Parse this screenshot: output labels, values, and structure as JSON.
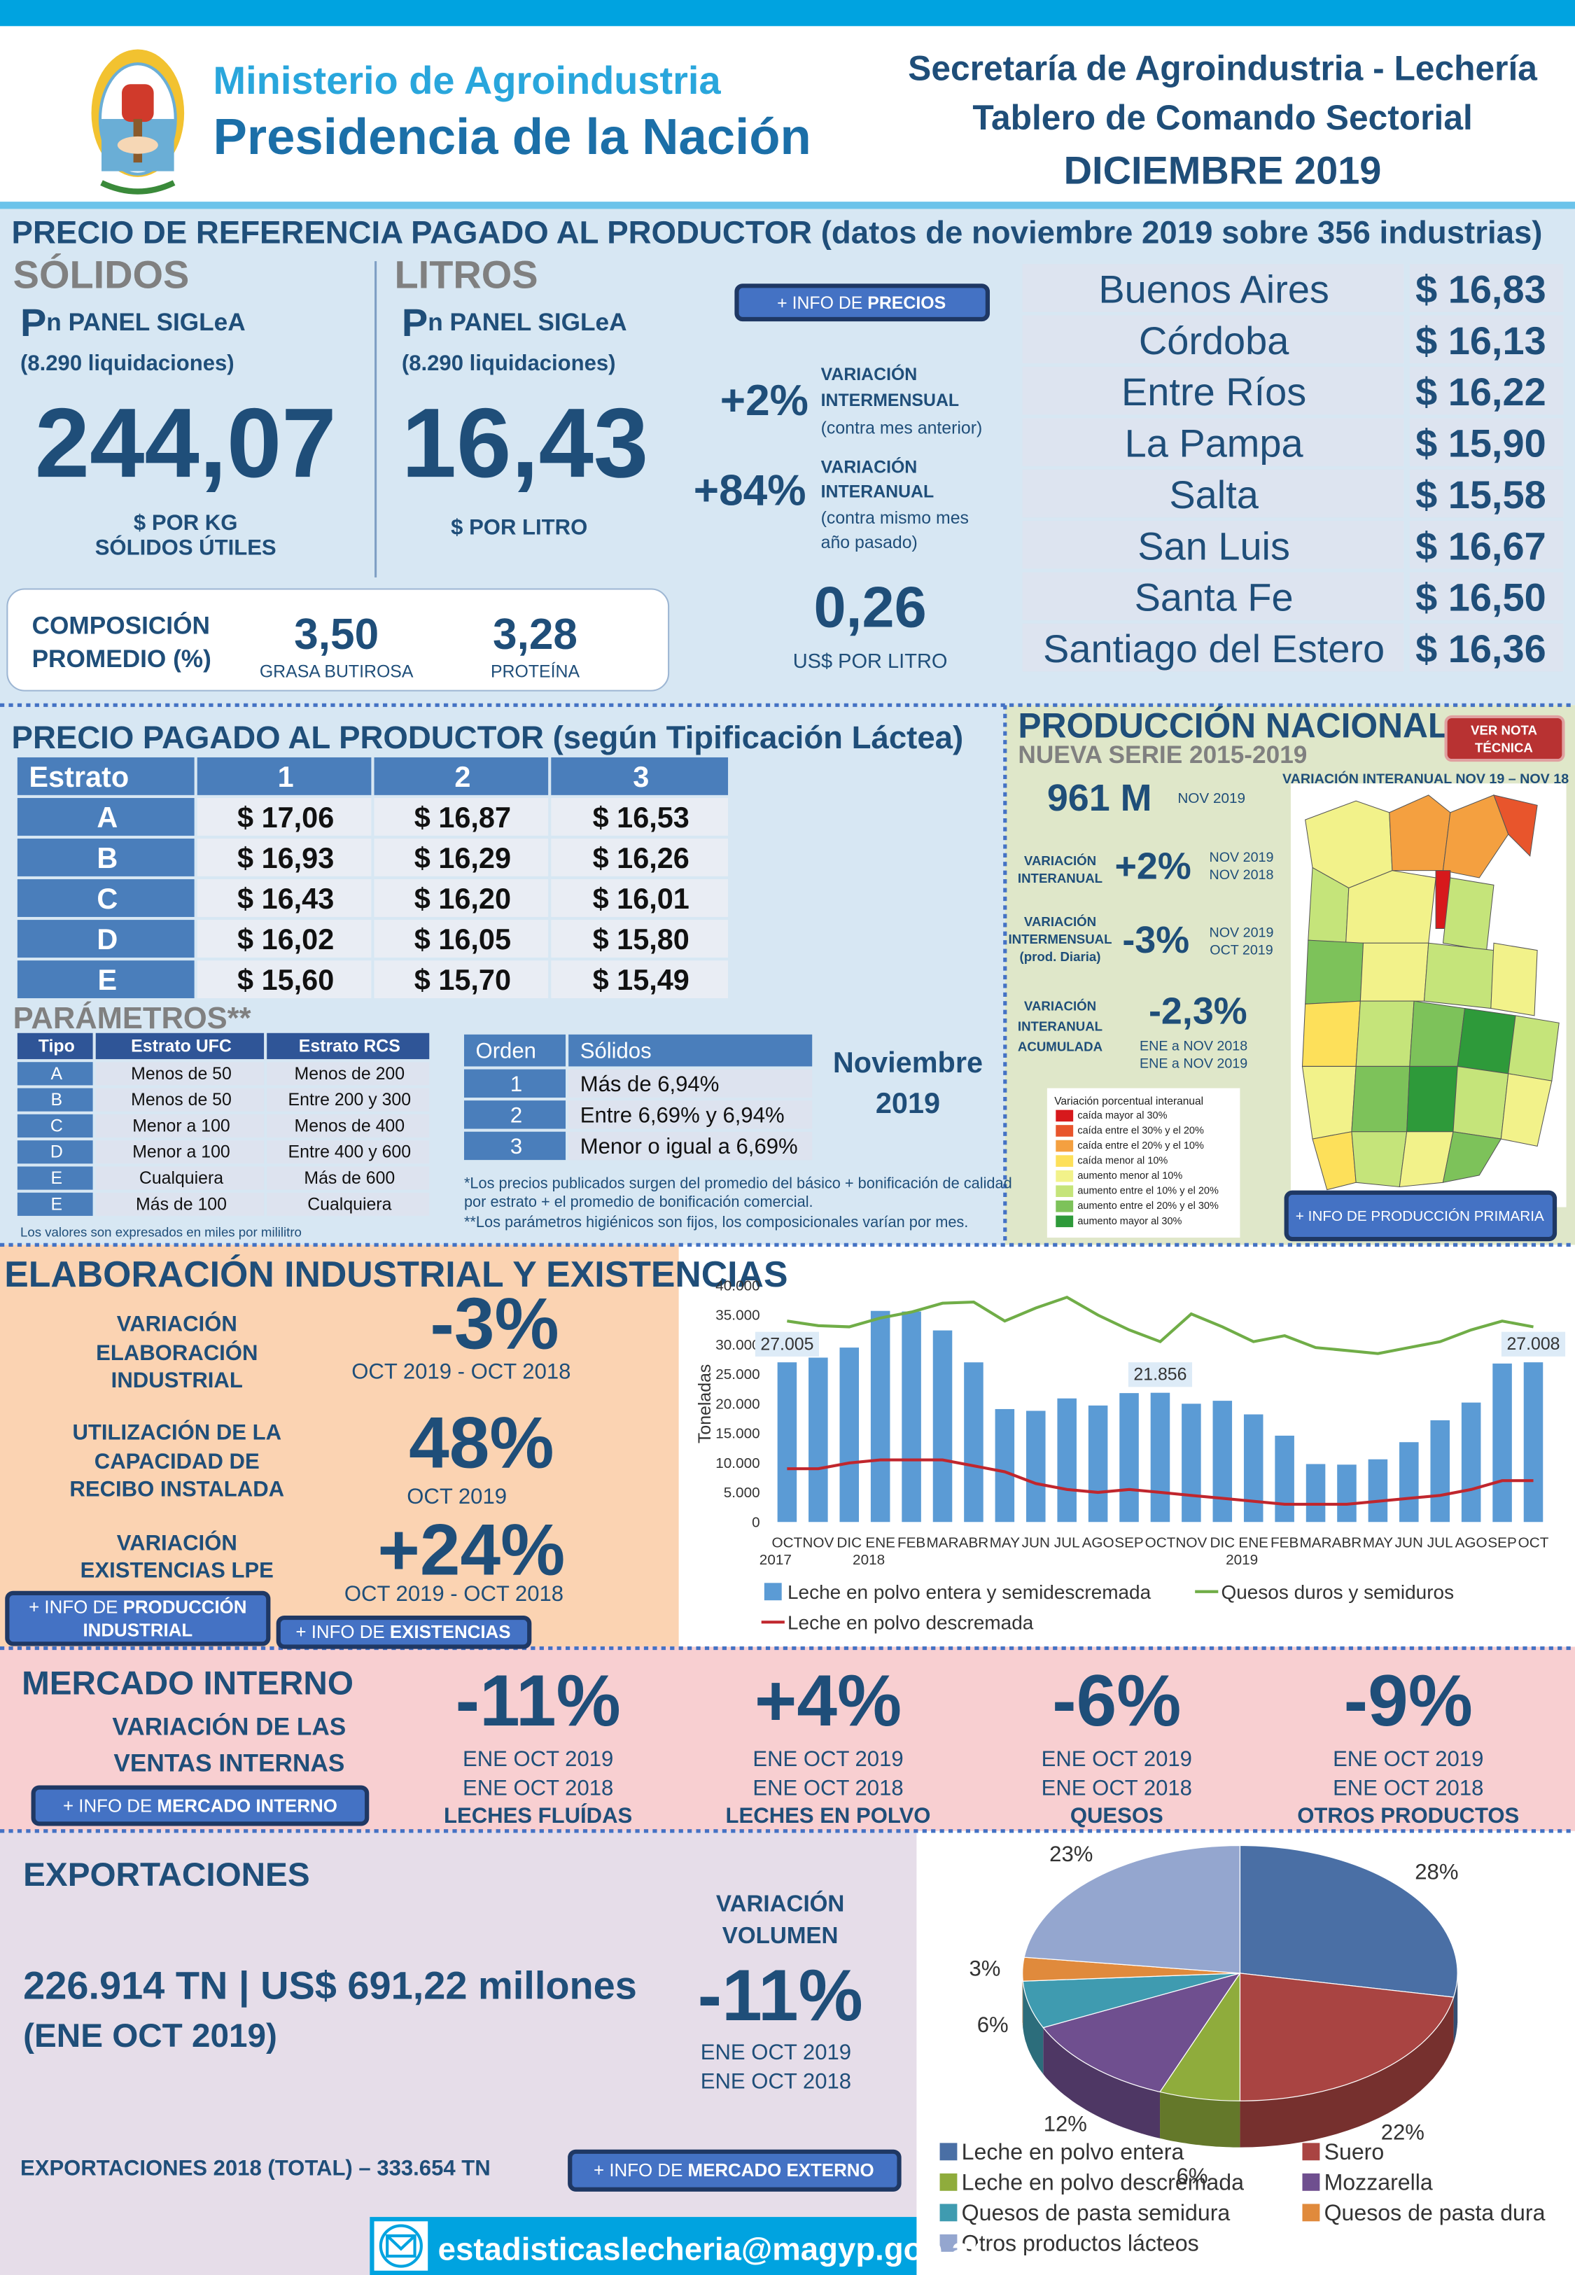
{
  "header": {
    "ministry": "Ministerio de Agroindustria",
    "presidency": "Presidencia de la Nación",
    "line1": "Secretaría de Agroindustria - Lechería",
    "line2": "Tablero de Comando Sectorial",
    "period": "DICIEMBRE 2019"
  },
  "reference": {
    "title": "PRECIO DE REFERENCIA PAGADO AL PRODUCTOR (datos de noviembre 2019 sobre 356 industrias)",
    "solids": {
      "heading": "SÓLIDOS",
      "panel_p": "P",
      "panel": "n PANEL SIGLeA",
      "liquidations": "(8.290 liquidaciones)",
      "value": "244,07",
      "unit": [
        "$ POR KG",
        "SÓLIDOS ÚTILES"
      ]
    },
    "liters": {
      "heading": "LITROS",
      "panel_p": "P",
      "panel": "n PANEL SIGLeA",
      "liquidations": "(8.290 liquidaciones)",
      "value": "16,43",
      "unit": [
        "$ POR LITRO"
      ]
    },
    "info_button": {
      "prefix": "+ INFO DE ",
      "bold": "PRECIOS"
    },
    "variations": [
      {
        "value": "+2%",
        "lines": [
          "VARIACIÓN",
          "INTERMENSUAL"
        ],
        "note": [
          "(contra mes anterior)"
        ]
      },
      {
        "value": "+84%",
        "lines": [
          "VARIACIÓN",
          "INTERANUAL"
        ],
        "note": [
          "(contra mismo mes",
          "año pasado)"
        ]
      }
    ],
    "usd": {
      "value": "0,26",
      "unit": "US$ POR LITRO"
    },
    "composition": {
      "label": [
        "COMPOSICIÓN",
        "PROMEDIO (%)"
      ],
      "items": [
        {
          "value": "3,50",
          "label": "GRASA BUTIROSA"
        },
        {
          "value": "3,28",
          "label": "PROTEÍNA"
        }
      ]
    },
    "provinces": [
      [
        "Buenos Aires",
        "$ 16,83"
      ],
      [
        "Córdoba",
        "$ 16,13"
      ],
      [
        "Entre Ríos",
        "$ 16,22"
      ],
      [
        "La Pampa",
        "$ 15,90"
      ],
      [
        "Salta",
        "$ 15,58"
      ],
      [
        "San Luis",
        "$ 16,67"
      ],
      [
        "Santa Fe",
        "$ 16,50"
      ],
      [
        "Santiago del Estero",
        "$ 16,36"
      ]
    ]
  },
  "tipification": {
    "title": "PRECIO PAGADO AL PRODUCTOR (según Tipificación Láctea)",
    "table": {
      "header": [
        "Estrato",
        "1",
        "2",
        "3"
      ],
      "rows": [
        [
          "A",
          "$ 17,06",
          "$ 16,87",
          "$ 16,53"
        ],
        [
          "B",
          "$ 16,93",
          "$ 16,29",
          "$ 16,26"
        ],
        [
          "C",
          "$ 16,43",
          "$ 16,20",
          "$ 16,01"
        ],
        [
          "D",
          "$ 16,02",
          "$ 16,05",
          "$ 15,80"
        ],
        [
          "E",
          "$ 15,60",
          "$ 15,70",
          "$ 15,49"
        ]
      ]
    },
    "parameters_title": "PARÁMETROS**",
    "parameters": {
      "header": [
        "Tipo",
        "Estrato UFC",
        "Estrato RCS"
      ],
      "rows": [
        [
          "A",
          "Menos de 50",
          "Menos de 200"
        ],
        [
          "B",
          "Menos de 50",
          "Entre 200 y 300"
        ],
        [
          "C",
          "Menor a 100",
          "Menos de 400"
        ],
        [
          "D",
          "Menor a 100",
          "Entre 400 y 600"
        ],
        [
          "E",
          "Cualquiera",
          "Más de 600"
        ],
        [
          "E",
          "Más de 100",
          "Cualquiera"
        ]
      ]
    },
    "units_note": "Los valores son expresados en miles por mililitro",
    "solids": {
      "header": [
        "Orden",
        "Sólidos"
      ],
      "rows": [
        [
          "1",
          "Más de 6,94%"
        ],
        [
          "2",
          "Entre 6,69% y 6,94%"
        ],
        [
          "3",
          "Menor o igual a 6,69%"
        ]
      ]
    },
    "period": [
      "Noviembre",
      "2019"
    ],
    "notes": [
      "*Los precios publicados surgen del promedio del básico + bonificación de calidad",
      "por estrato + el promedio de bonificación comercial.",
      "**Los parámetros higiénicos son fijos, los composicionales varían por mes."
    ]
  },
  "production": {
    "title": "PRODUCCIÓN NACIONAL",
    "subtitle": "NUEVA SERIE 2015-2019",
    "note_button": [
      "VER NOTA",
      "TÉCNICA"
    ],
    "map_title": "VARIACIÓN INTERANUAL NOV 19 – NOV 18",
    "volume": "961 M",
    "volume_period": "NOV 2019",
    "variations": [
      {
        "label": [
          "VARIACIÓN",
          "INTERANUAL"
        ],
        "value": "+2%",
        "periods": [
          "NOV 2019",
          "NOV 2018"
        ]
      },
      {
        "label": [
          "VARIACIÓN",
          "INTERMENSUAL",
          "(prod. Diaria)"
        ],
        "value": "-3%",
        "periods": [
          "NOV 2019",
          "OCT 2019"
        ]
      },
      {
        "label": [
          "VARIACIÓN",
          "INTERANUAL",
          "ACUMULADA"
        ],
        "value": "-2,3%",
        "periods": [
          "ENE a NOV 2018",
          "ENE a NOV 2019"
        ]
      }
    ],
    "legend": {
      "title": "Variación porcentual interanual",
      "items": [
        {
          "label": "caída mayor al 30%",
          "color": "#d7191c"
        },
        {
          "label": "caída entre el 30% y el 20%",
          "color": "#e8552c"
        },
        {
          "label": "caída entre el 20% y el 10%",
          "color": "#f4a040"
        },
        {
          "label": "caída menor al 10%",
          "color": "#fde05a"
        },
        {
          "label": "aumento menor al 10%",
          "color": "#f2f28a"
        },
        {
          "label": "aumento entre el 10% y el 20%",
          "color": "#c5e47a"
        },
        {
          "label": "aumento entre el 20% y el 30%",
          "color": "#7dc25a"
        },
        {
          "label": "aumento mayor al 30%",
          "color": "#2e9a3a"
        }
      ]
    },
    "info_button": "+ INFO DE PRODUCCIÓN PRIMARIA"
  },
  "industrial": {
    "title": "ELABORACIÓN INDUSTRIAL Y EXISTENCIAS",
    "items": [
      {
        "label": [
          "VARIACIÓN",
          "ELABORACIÓN",
          "INDUSTRIAL"
        ],
        "value": "-3%",
        "period": "OCT 2019 -  OCT 2018"
      },
      {
        "label": [
          "UTILIZACIÓN DE LA",
          "CAPACIDAD DE",
          "RECIBO INSTALADA"
        ],
        "value": "48%",
        "period": "OCT 2019"
      },
      {
        "label": [
          "VARIACIÓN",
          "EXISTENCIAS LPE"
        ],
        "value": "+24%",
        "period": "OCT 2019 -  OCT 2018"
      }
    ],
    "buttons": [
      {
        "prefix": "+ INFO DE ",
        "bold": "PRODUCCIÓN",
        "line2": "INDUSTRIAL"
      },
      {
        "prefix": "+ INFO DE ",
        "bold": "EXISTENCIAS"
      }
    ]
  },
  "domestic": {
    "title": "MERCADO INTERNO",
    "subtitle": [
      "VARIACIÓN DE LAS",
      "VENTAS INTERNAS"
    ],
    "button": {
      "prefix": "+ INFO DE ",
      "bold": "MERCADO INTERNO"
    },
    "items": [
      {
        "value": "-11%",
        "periods": [
          "ENE OCT 2019",
          "ENE OCT 2018"
        ],
        "label": "LECHES FLUÍDAS"
      },
      {
        "value": "+4%",
        "periods": [
          "ENE OCT 2019",
          "ENE OCT 2018"
        ],
        "label": "LECHES EN POLVO"
      },
      {
        "value": "-6%",
        "periods": [
          "ENE OCT 2019",
          "ENE OCT 2018"
        ],
        "label": "QUESOS"
      },
      {
        "value": "-9%",
        "periods": [
          "ENE OCT 2019",
          "ENE OCT 2018"
        ],
        "label": "OTROS PRODUCTOS"
      }
    ]
  },
  "exports": {
    "title": "EXPORTACIONES",
    "summary": "226.914 TN | US$ 691,22 millones",
    "summary_period": "(ENE OCT 2019)",
    "variation_label": [
      "VARIACIÓN",
      "VOLUMEN"
    ],
    "variation": "-11%",
    "periods": [
      "ENE OCT 2019",
      "ENE OCT 2018"
    ],
    "total_2018": "EXPORTACIONES 2018 (TOTAL) – 333.654 TN",
    "button": {
      "prefix": "+ INFO DE ",
      "bold": "MERCADO EXTERNO"
    }
  },
  "footer": {
    "email": "estadisticaslecheria@magyp.gob.ar"
  },
  "chart_data": [
    {
      "type": "bar",
      "y_label": "Toneladas",
      "categories": [
        "OCT 2017",
        "NOV",
        "DIC",
        "ENE 2018",
        "FEB",
        "MAR",
        "ABR",
        "MAY",
        "JUN",
        "JUL",
        "AGO",
        "SEP",
        "OCT",
        "NOV",
        "DIC",
        "ENE 2019",
        "FEB",
        "MAR",
        "ABR",
        "MAY",
        "JUN",
        "JUL",
        "AGO",
        "SEP",
        "OCT"
      ],
      "ylim": [
        0,
        40000
      ],
      "yticks": [
        0,
        {
          "value": 5000,
          "label": "5.000"
        },
        {
          "value": 10000,
          "label": "10.000"
        },
        {
          "value": 15000,
          "label": "15.000"
        },
        {
          "value": 20000,
          "label": "20.000"
        },
        {
          "value": 25000,
          "label": "25.000"
        },
        {
          "value": 30000,
          "label": "30.000"
        },
        {
          "value": 35000,
          "label": "35.000"
        },
        {
          "value": 40000,
          "label": "40.000"
        }
      ],
      "grid": false,
      "series": [
        {
          "name": "Leche en polvo entera y semidescremada",
          "type": "bar",
          "color": "#5b9bd5",
          "values": [
            27005,
            27800,
            29500,
            35700,
            35600,
            32400,
            27000,
            19100,
            18800,
            20900,
            19700,
            21800,
            21856,
            20000,
            20500,
            18200,
            14600,
            9800,
            9700,
            10600,
            13500,
            17200,
            20200,
            26800,
            27008
          ],
          "value_labels": [
            "27.005",
            null,
            null,
            null,
            null,
            null,
            null,
            null,
            null,
            null,
            null,
            null,
            "21.856",
            null,
            null,
            null,
            null,
            null,
            null,
            null,
            null,
            null,
            null,
            null,
            "27.008"
          ]
        },
        {
          "name": "Quesos duros y semiduros",
          "type": "line",
          "color": "#70ad47",
          "values": [
            34000,
            33200,
            33000,
            34500,
            35500,
            37000,
            37200,
            34000,
            36200,
            38000,
            35000,
            32500,
            30500,
            35200,
            33000,
            30500,
            31500,
            29500,
            29000,
            28500,
            29500,
            30500,
            32500,
            34000,
            33000
          ]
        },
        {
          "name": "Leche en polvo descremada",
          "type": "line",
          "color": "#c0262d",
          "values": [
            9000,
            9000,
            10000,
            10500,
            10500,
            10500,
            9500,
            8500,
            6500,
            5500,
            5000,
            5500,
            5000,
            4500,
            4000,
            3500,
            3000,
            3000,
            3000,
            3500,
            4000,
            4500,
            5500,
            7000,
            7000
          ]
        }
      ]
    },
    {
      "type": "pie",
      "categories": [
        "Leche en polvo entera",
        "Suero",
        "Leche en polvo descremada",
        "Mozzarella",
        "Quesos de pasta semidura",
        "Quesos de pasta dura",
        "Otros productos lácteos"
      ],
      "values": [
        28,
        22,
        6,
        12,
        6,
        3,
        23
      ],
      "value_labels": [
        "28%",
        "22%",
        "6%",
        "12%",
        "6%",
        "3%",
        "23%"
      ],
      "colors": [
        "#4a6fa5",
        "#a94442",
        "#8fac3c",
        "#6f4f8f",
        "#3f9bb0",
        "#e08a3c",
        "#94a6cf"
      ]
    }
  ]
}
